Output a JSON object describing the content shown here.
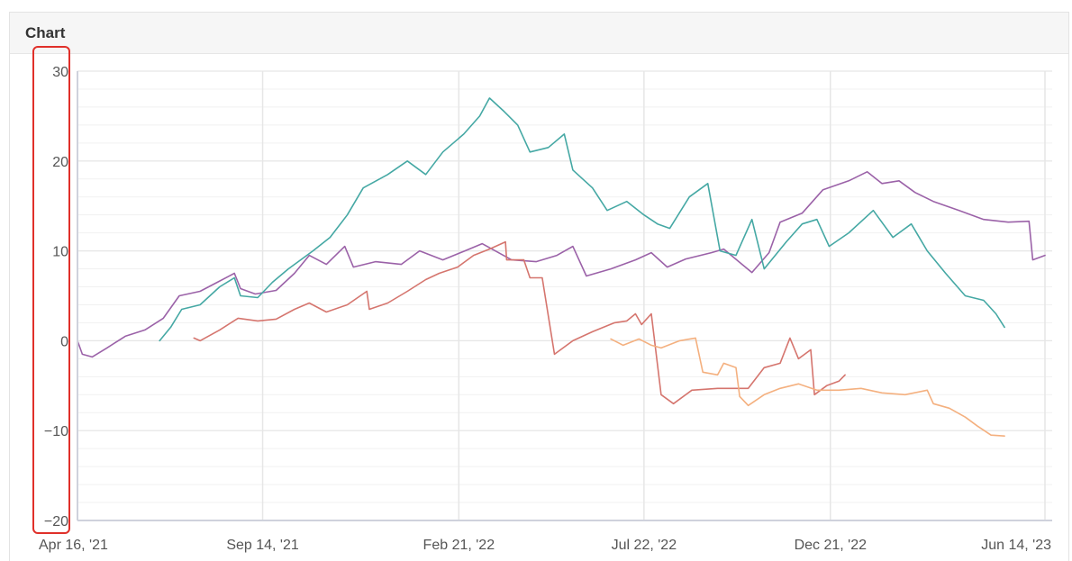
{
  "panel": {
    "title": "Chart"
  },
  "colors": {
    "grid": "#e6e6e6",
    "axis": "#cfd2dc",
    "tick_text": "#555555",
    "highlight": "#e0302a",
    "series": [
      "#9b62a8",
      "#45a8a4",
      "#d5756e",
      "#f4b07f"
    ]
  },
  "chart_data": {
    "type": "line",
    "title": "",
    "xlabel": "",
    "ylabel": "",
    "x_range": [
      "2021-04-16",
      "2023-06-14"
    ],
    "ylim": [
      -20,
      30
    ],
    "y_ticks": [
      {
        "value": 30,
        "label": "30"
      },
      {
        "value": 20,
        "label": "20"
      },
      {
        "value": 10,
        "label": "10"
      },
      {
        "value": 0,
        "label": "0"
      },
      {
        "value": -10,
        "label": "−10"
      },
      {
        "value": -20,
        "label": "−20"
      }
    ],
    "x_ticks": [
      {
        "date": "2021-04-16",
        "label": "Apr 16, '21"
      },
      {
        "date": "2021-09-14",
        "label": "Sep 14, '21"
      },
      {
        "date": "2022-02-21",
        "label": "Feb 21, '22"
      },
      {
        "date": "2022-07-22",
        "label": "Jul 22, '22"
      },
      {
        "date": "2022-12-21",
        "label": "Dec 21, '22"
      },
      {
        "date": "2023-06-14",
        "label": "Jun 14, '23"
      }
    ],
    "grid": true,
    "legend": "none",
    "series": [
      {
        "color": "#9b62a8",
        "points": [
          [
            "2021-04-16",
            0
          ],
          [
            "2021-04-20",
            -1.5
          ],
          [
            "2021-04-28",
            -1.8
          ],
          [
            "2021-05-10",
            -0.8
          ],
          [
            "2021-05-25",
            0.5
          ],
          [
            "2021-06-10",
            1.2
          ],
          [
            "2021-06-25",
            2.5
          ],
          [
            "2021-07-08",
            5
          ],
          [
            "2021-07-25",
            5.5
          ],
          [
            "2021-08-08",
            6.5
          ],
          [
            "2021-08-22",
            7.5
          ],
          [
            "2021-08-27",
            5.8
          ],
          [
            "2021-09-08",
            5.2
          ],
          [
            "2021-09-25",
            5.6
          ],
          [
            "2021-10-10",
            7.5
          ],
          [
            "2021-10-22",
            9.5
          ],
          [
            "2021-11-05",
            8.5
          ],
          [
            "2021-11-20",
            10.5
          ],
          [
            "2021-11-27",
            8.2
          ],
          [
            "2021-12-15",
            8.8
          ],
          [
            "2022-01-05",
            8.5
          ],
          [
            "2022-01-20",
            10
          ],
          [
            "2022-02-08",
            9
          ],
          [
            "2022-02-26",
            10
          ],
          [
            "2022-03-12",
            10.8
          ],
          [
            "2022-03-20",
            10.2
          ],
          [
            "2022-04-05",
            9
          ],
          [
            "2022-04-25",
            8.8
          ],
          [
            "2022-05-12",
            9.5
          ],
          [
            "2022-05-25",
            10.5
          ],
          [
            "2022-06-05",
            7.2
          ],
          [
            "2022-06-25",
            8
          ],
          [
            "2022-07-15",
            9
          ],
          [
            "2022-07-28",
            9.8
          ],
          [
            "2022-08-10",
            8.2
          ],
          [
            "2022-08-25",
            9.1
          ],
          [
            "2022-09-15",
            9.8
          ],
          [
            "2022-09-25",
            10.2
          ],
          [
            "2022-10-10",
            8.5
          ],
          [
            "2022-10-18",
            7.6
          ],
          [
            "2022-11-01",
            9.8
          ],
          [
            "2022-11-10",
            13.2
          ],
          [
            "2022-11-28",
            14.2
          ],
          [
            "2022-12-15",
            16.8
          ],
          [
            "2023-01-05",
            17.8
          ],
          [
            "2023-01-20",
            18.8
          ],
          [
            "2023-02-01",
            17.5
          ],
          [
            "2023-02-15",
            17.8
          ],
          [
            "2023-02-28",
            16.5
          ],
          [
            "2023-03-15",
            15.5
          ],
          [
            "2023-04-05",
            14.5
          ],
          [
            "2023-04-25",
            13.5
          ],
          [
            "2023-05-15",
            13.2
          ],
          [
            "2023-06-01",
            13.3
          ],
          [
            "2023-06-04",
            9
          ],
          [
            "2023-06-14",
            9.5
          ]
        ]
      },
      {
        "color": "#45a8a4",
        "points": [
          [
            "2021-06-22",
            0
          ],
          [
            "2021-07-01",
            1.5
          ],
          [
            "2021-07-10",
            3.5
          ],
          [
            "2021-07-25",
            4
          ],
          [
            "2021-08-10",
            6
          ],
          [
            "2021-08-22",
            7
          ],
          [
            "2021-08-27",
            5
          ],
          [
            "2021-09-10",
            4.8
          ],
          [
            "2021-09-22",
            6.5
          ],
          [
            "2021-10-05",
            8
          ],
          [
            "2021-10-25",
            10
          ],
          [
            "2021-11-08",
            11.5
          ],
          [
            "2021-11-22",
            14
          ],
          [
            "2021-12-05",
            17
          ],
          [
            "2021-12-25",
            18.5
          ],
          [
            "2022-01-10",
            20
          ],
          [
            "2022-01-25",
            18.5
          ],
          [
            "2022-02-08",
            21
          ],
          [
            "2022-02-25",
            23
          ],
          [
            "2022-03-10",
            25
          ],
          [
            "2022-03-18",
            27
          ],
          [
            "2022-03-30",
            25.5
          ],
          [
            "2022-04-10",
            24
          ],
          [
            "2022-04-20",
            21
          ],
          [
            "2022-05-05",
            21.5
          ],
          [
            "2022-05-18",
            23
          ],
          [
            "2022-05-25",
            19
          ],
          [
            "2022-06-10",
            17
          ],
          [
            "2022-06-22",
            14.5
          ],
          [
            "2022-07-08",
            15.5
          ],
          [
            "2022-07-22",
            14
          ],
          [
            "2022-08-02",
            13
          ],
          [
            "2022-08-12",
            12.5
          ],
          [
            "2022-08-28",
            16
          ],
          [
            "2022-09-12",
            17.5
          ],
          [
            "2022-09-22",
            10
          ],
          [
            "2022-10-05",
            9.5
          ],
          [
            "2022-10-18",
            13.5
          ],
          [
            "2022-10-28",
            8
          ],
          [
            "2022-11-15",
            11
          ],
          [
            "2022-11-28",
            13
          ],
          [
            "2022-12-10",
            13.5
          ],
          [
            "2022-12-20",
            10.5
          ],
          [
            "2023-01-05",
            12
          ],
          [
            "2023-01-25",
            14.5
          ],
          [
            "2023-02-10",
            11.5
          ],
          [
            "2023-02-25",
            13
          ],
          [
            "2023-03-10",
            10
          ],
          [
            "2023-03-25",
            7.5
          ],
          [
            "2023-04-10",
            5
          ],
          [
            "2023-04-25",
            4.5
          ],
          [
            "2023-05-05",
            3
          ],
          [
            "2023-05-12",
            1.5
          ]
        ]
      },
      {
        "color": "#d5756e",
        "points": [
          [
            "2021-07-20",
            0.3
          ],
          [
            "2021-07-25",
            0
          ],
          [
            "2021-08-10",
            1.2
          ],
          [
            "2021-08-25",
            2.5
          ],
          [
            "2021-09-10",
            2.2
          ],
          [
            "2021-09-25",
            2.4
          ],
          [
            "2021-10-10",
            3.5
          ],
          [
            "2021-10-22",
            4.2
          ],
          [
            "2021-11-05",
            3.2
          ],
          [
            "2021-11-22",
            4
          ],
          [
            "2021-12-08",
            5.5
          ],
          [
            "2021-12-10",
            3.5
          ],
          [
            "2021-12-25",
            4.2
          ],
          [
            "2022-01-10",
            5.5
          ],
          [
            "2022-01-25",
            6.8
          ],
          [
            "2022-02-05",
            7.5
          ],
          [
            "2022-02-20",
            8.2
          ],
          [
            "2022-03-05",
            9.5
          ],
          [
            "2022-03-18",
            10.2
          ],
          [
            "2022-03-31",
            11
          ],
          [
            "2022-04-01",
            9
          ],
          [
            "2022-04-15",
            9
          ],
          [
            "2022-04-20",
            7
          ],
          [
            "2022-04-30",
            7
          ],
          [
            "2022-05-10",
            -1.5
          ],
          [
            "2022-05-25",
            0
          ],
          [
            "2022-06-10",
            1
          ],
          [
            "2022-06-28",
            2
          ],
          [
            "2022-07-08",
            2.2
          ],
          [
            "2022-07-15",
            3
          ],
          [
            "2022-07-20",
            1.8
          ],
          [
            "2022-07-28",
            3
          ],
          [
            "2022-08-05",
            -6
          ],
          [
            "2022-08-15",
            -7
          ],
          [
            "2022-08-30",
            -5.5
          ],
          [
            "2022-09-20",
            -5.3
          ],
          [
            "2022-10-15",
            -5.3
          ],
          [
            "2022-10-28",
            -3
          ],
          [
            "2022-11-10",
            -2.5
          ],
          [
            "2022-11-18",
            0.3
          ],
          [
            "2022-11-25",
            -2
          ],
          [
            "2022-12-05",
            -1
          ],
          [
            "2022-12-08",
            -6
          ],
          [
            "2022-12-18",
            -5
          ],
          [
            "2022-12-28",
            -4.5
          ],
          [
            "2023-01-02",
            -3.8
          ]
        ]
      },
      {
        "color": "#f4b07f",
        "points": [
          [
            "2022-06-25",
            0.2
          ],
          [
            "2022-07-05",
            -0.5
          ],
          [
            "2022-07-18",
            0.2
          ],
          [
            "2022-07-28",
            -0.5
          ],
          [
            "2022-08-05",
            -0.8
          ],
          [
            "2022-08-20",
            0
          ],
          [
            "2022-09-02",
            0.3
          ],
          [
            "2022-09-08",
            -3.5
          ],
          [
            "2022-09-20",
            -3.8
          ],
          [
            "2022-09-25",
            -2.5
          ],
          [
            "2022-10-05",
            -3
          ],
          [
            "2022-10-08",
            -6.2
          ],
          [
            "2022-10-15",
            -7.2
          ],
          [
            "2022-10-28",
            -6
          ],
          [
            "2022-11-10",
            -5.3
          ],
          [
            "2022-11-25",
            -4.8
          ],
          [
            "2022-12-10",
            -5.5
          ],
          [
            "2022-12-28",
            -5.5
          ],
          [
            "2023-01-15",
            -5.3
          ],
          [
            "2023-02-01",
            -5.8
          ],
          [
            "2023-02-20",
            -6
          ],
          [
            "2023-03-10",
            -5.5
          ],
          [
            "2023-03-15",
            -7
          ],
          [
            "2023-03-28",
            -7.5
          ],
          [
            "2023-04-10",
            -8.5
          ],
          [
            "2023-04-20",
            -9.5
          ],
          [
            "2023-05-01",
            -10.5
          ],
          [
            "2023-05-12",
            -10.6
          ]
        ]
      }
    ]
  }
}
